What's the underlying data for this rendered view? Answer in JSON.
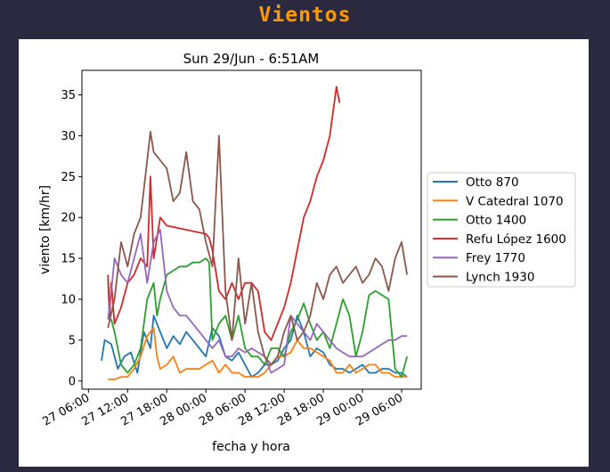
{
  "header": {
    "title": "Vientos"
  },
  "chart_data": {
    "type": "line",
    "title": "Sun 29/Jun - 6:51AM",
    "xlabel": "fecha y hora",
    "ylabel": "viento [km/hr]",
    "x_ticks": [
      "27 06:00",
      "27 12:00",
      "27 18:00",
      "28 00:00",
      "28 06:00",
      "28 12:00",
      "28 18:00",
      "29 00:00",
      "29 06:00"
    ],
    "y_ticks": [
      0,
      5,
      10,
      15,
      20,
      25,
      30,
      35
    ],
    "xlim": [
      "2025-06-27T05:00",
      "2025-06-29T09:00"
    ],
    "ylim": [
      -1,
      38
    ],
    "grid": false,
    "legend_position": "right",
    "series": [
      {
        "name": "Otto 870",
        "color": "#1f77b4",
        "points": [
          [
            "27T08:00",
            2.5
          ],
          [
            "27T08:30",
            5
          ],
          [
            "27T09:30",
            4.5
          ],
          [
            "27T10:30",
            1.5
          ],
          [
            "27T11:30",
            3
          ],
          [
            "27T12:30",
            3.5
          ],
          [
            "27T13:30",
            1
          ],
          [
            "27T14:30",
            6
          ],
          [
            "27T15:30",
            4
          ],
          [
            "27T16:00",
            8
          ],
          [
            "27T17:00",
            6
          ],
          [
            "27T18:00",
            4
          ],
          [
            "27T19:00",
            5.5
          ],
          [
            "27T20:00",
            4.5
          ],
          [
            "27T21:00",
            6
          ],
          [
            "27T22:00",
            5
          ],
          [
            "27T23:00",
            4
          ],
          [
            "28T00:00",
            3
          ],
          [
            "28T01:00",
            6.5
          ],
          [
            "28T02:00",
            5.5
          ],
          [
            "28T03:00",
            3
          ],
          [
            "28T04:00",
            2.5
          ],
          [
            "28T05:00",
            3.5
          ],
          [
            "28T06:00",
            2
          ],
          [
            "28T07:00",
            0.5
          ],
          [
            "28T08:00",
            1
          ],
          [
            "28T09:00",
            2
          ],
          [
            "28T10:00",
            2
          ],
          [
            "28T11:00",
            2.5
          ],
          [
            "28T12:00",
            4
          ],
          [
            "28T13:00",
            5
          ],
          [
            "28T14:00",
            8
          ],
          [
            "28T15:00",
            6
          ],
          [
            "28T16:00",
            3
          ],
          [
            "28T17:00",
            4
          ],
          [
            "28T18:00",
            3.5
          ],
          [
            "28T19:00",
            2
          ],
          [
            "28T20:00",
            1.5
          ],
          [
            "28T21:00",
            1.5
          ],
          [
            "28T22:00",
            1
          ],
          [
            "28T23:00",
            1.5
          ],
          [
            "29T00:00",
            2
          ],
          [
            "29T01:00",
            1
          ],
          [
            "29T02:00",
            1
          ],
          [
            "29T03:00",
            1.5
          ],
          [
            "29T04:00",
            1.5
          ],
          [
            "29T05:00",
            1
          ],
          [
            "29T06:00",
            1
          ],
          [
            "29T06:50",
            0.5
          ]
        ]
      },
      {
        "name": "V Catedral 1070",
        "color": "#ff7f0e",
        "points": [
          [
            "27T09:00",
            0.2
          ],
          [
            "27T10:00",
            0.2
          ],
          [
            "27T11:00",
            0.5
          ],
          [
            "27T12:00",
            0.5
          ],
          [
            "27T13:00",
            1.5
          ],
          [
            "27T14:00",
            3
          ],
          [
            "27T15:00",
            5.5
          ],
          [
            "27T16:00",
            6.5
          ],
          [
            "27T16:30",
            3
          ],
          [
            "27T17:00",
            1.5
          ],
          [
            "27T18:00",
            2
          ],
          [
            "27T19:00",
            3
          ],
          [
            "27T20:00",
            1
          ],
          [
            "27T21:00",
            1.5
          ],
          [
            "27T22:00",
            1.5
          ],
          [
            "27T23:00",
            1.5
          ],
          [
            "28T00:00",
            2
          ],
          [
            "28T01:00",
            2.5
          ],
          [
            "28T02:00",
            1
          ],
          [
            "28T03:00",
            2
          ],
          [
            "28T04:00",
            1
          ],
          [
            "28T05:00",
            1
          ],
          [
            "28T06:00",
            0.5
          ],
          [
            "28T07:00",
            0.5
          ],
          [
            "28T08:00",
            0.5
          ],
          [
            "28T09:00",
            1
          ],
          [
            "28T10:00",
            2
          ],
          [
            "28T11:00",
            3
          ],
          [
            "28T12:00",
            3
          ],
          [
            "28T13:00",
            3.5
          ],
          [
            "28T14:00",
            5
          ],
          [
            "28T15:00",
            4
          ],
          [
            "28T16:00",
            4
          ],
          [
            "28T17:00",
            3.5
          ],
          [
            "28T18:00",
            3
          ],
          [
            "28T19:00",
            2.5
          ],
          [
            "28T20:00",
            1
          ],
          [
            "28T21:00",
            1
          ],
          [
            "28T22:00",
            2
          ],
          [
            "28T23:00",
            1
          ],
          [
            "29T00:00",
            1.5
          ],
          [
            "29T01:00",
            2
          ],
          [
            "29T02:00",
            2
          ],
          [
            "29T03:00",
            1
          ],
          [
            "29T04:00",
            1
          ],
          [
            "29T05:00",
            0.5
          ],
          [
            "29T06:00",
            0.5
          ],
          [
            "29T06:50",
            0.5
          ]
        ]
      },
      {
        "name": "Otto 1400",
        "color": "#2ca02c",
        "points": [
          [
            "27T09:00",
            12.5
          ],
          [
            "27T09:15",
            7.5
          ],
          [
            "27T09:30",
            7.5
          ],
          [
            "27T10:00",
            6
          ],
          [
            "27T11:00",
            2
          ],
          [
            "27T12:00",
            1
          ],
          [
            "27T13:00",
            2
          ],
          [
            "27T14:00",
            4
          ],
          [
            "27T15:00",
            10
          ],
          [
            "27T16:00",
            12
          ],
          [
            "27T16:30",
            8
          ],
          [
            "27T17:00",
            10
          ],
          [
            "27T18:00",
            13
          ],
          [
            "27T19:00",
            13.5
          ],
          [
            "27T20:00",
            14
          ],
          [
            "27T21:00",
            14
          ],
          [
            "27T22:00",
            14.5
          ],
          [
            "27T23:00",
            14.5
          ],
          [
            "28T00:00",
            15
          ],
          [
            "28T00:30",
            14.5
          ],
          [
            "28T01:00",
            5
          ],
          [
            "28T02:00",
            7
          ],
          [
            "28T03:00",
            8
          ],
          [
            "28T04:00",
            5
          ],
          [
            "28T05:00",
            8
          ],
          [
            "28T06:00",
            4
          ],
          [
            "28T07:00",
            3
          ],
          [
            "28T08:00",
            3
          ],
          [
            "28T09:00",
            2
          ],
          [
            "28T10:00",
            4
          ],
          [
            "28T11:00",
            4
          ],
          [
            "28T12:00",
            3
          ],
          [
            "28T13:00",
            6
          ],
          [
            "28T14:00",
            7.5
          ],
          [
            "28T15:00",
            9.5
          ],
          [
            "28T16:00",
            7
          ],
          [
            "28T17:00",
            5
          ],
          [
            "28T18:00",
            6
          ],
          [
            "28T19:00",
            4
          ],
          [
            "28T20:00",
            7
          ],
          [
            "28T21:00",
            10
          ],
          [
            "28T22:00",
            8
          ],
          [
            "28T23:00",
            3
          ],
          [
            "29T00:00",
            6
          ],
          [
            "29T01:00",
            10.5
          ],
          [
            "29T02:00",
            11
          ],
          [
            "29T03:00",
            10.5
          ],
          [
            "29T04:00",
            10
          ],
          [
            "29T05:00",
            1.5
          ],
          [
            "29T06:00",
            0.5
          ],
          [
            "29T06:50",
            3
          ]
        ]
      },
      {
        "name": "Refu López 1600",
        "color": "#d62728",
        "points": [
          [
            "27T09:00",
            13
          ],
          [
            "27T09:15",
            8
          ],
          [
            "27T09:30",
            12
          ],
          [
            "27T10:00",
            7
          ],
          [
            "27T11:00",
            9
          ],
          [
            "27T12:00",
            12
          ],
          [
            "27T13:00",
            13
          ],
          [
            "27T14:00",
            15
          ],
          [
            "27T15:00",
            14
          ],
          [
            "27T15:30",
            25
          ],
          [
            "27T16:00",
            15
          ],
          [
            "27T17:00",
            20
          ],
          [
            "27T18:00",
            19
          ],
          [
            "28T00:00",
            18
          ],
          [
            "28T00:30",
            17.5
          ],
          [
            "28T01:00",
            16
          ],
          [
            "28T02:00",
            11
          ],
          [
            "28T03:00",
            10
          ],
          [
            "28T04:00",
            12
          ],
          [
            "28T05:00",
            10
          ],
          [
            "28T06:00",
            12
          ],
          [
            "28T07:00",
            12
          ],
          [
            "28T08:00",
            11
          ],
          [
            "28T09:00",
            6
          ],
          [
            "28T10:00",
            5
          ],
          [
            "28T11:00",
            7
          ],
          [
            "28T12:00",
            9
          ],
          [
            "28T13:00",
            12
          ],
          [
            "28T14:00",
            16
          ],
          [
            "28T15:00",
            20
          ],
          [
            "28T16:00",
            22
          ],
          [
            "28T17:00",
            25
          ],
          [
            "28T18:00",
            27
          ],
          [
            "28T19:00",
            30
          ],
          [
            "28T20:00",
            36
          ],
          [
            "28T20:30",
            34
          ]
        ]
      },
      {
        "name": "Frey 1770",
        "color": "#9467bd",
        "points": [
          [
            "27T09:00",
            7.5
          ],
          [
            "27T09:30",
            11
          ],
          [
            "27T10:00",
            15
          ],
          [
            "27T11:00",
            13
          ],
          [
            "27T12:00",
            12
          ],
          [
            "27T13:00",
            15
          ],
          [
            "27T14:00",
            18
          ],
          [
            "27T15:00",
            12
          ],
          [
            "27T16:00",
            17
          ],
          [
            "27T17:00",
            18.5
          ],
          [
            "27T18:00",
            11
          ],
          [
            "27T19:00",
            9
          ],
          [
            "27T20:00",
            8
          ],
          [
            "27T21:00",
            8
          ],
          [
            "27T22:00",
            7
          ],
          [
            "27T23:00",
            6
          ],
          [
            "28T00:00",
            5
          ],
          [
            "28T01:00",
            4
          ],
          [
            "28T02:00",
            5
          ],
          [
            "28T03:00",
            3
          ],
          [
            "28T04:00",
            3
          ],
          [
            "28T05:00",
            4
          ],
          [
            "28T06:00",
            3.5
          ],
          [
            "28T07:00",
            4
          ],
          [
            "28T08:00",
            3.5
          ],
          [
            "28T09:00",
            3
          ],
          [
            "28T10:00",
            1
          ],
          [
            "28T11:00",
            1.5
          ],
          [
            "28T12:00",
            2
          ],
          [
            "28T13:00",
            8
          ],
          [
            "28T14:00",
            7
          ],
          [
            "28T15:00",
            6
          ],
          [
            "28T16:00",
            5
          ],
          [
            "28T17:00",
            7
          ],
          [
            "28T18:00",
            6
          ],
          [
            "28T19:00",
            5
          ],
          [
            "28T20:00",
            4
          ],
          [
            "28T21:00",
            3.5
          ],
          [
            "28T22:00",
            3
          ],
          [
            "28T23:00",
            3
          ],
          [
            "29T00:00",
            3
          ],
          [
            "29T01:00",
            3.5
          ],
          [
            "29T02:00",
            4
          ],
          [
            "29T03:00",
            4.5
          ],
          [
            "29T04:00",
            5
          ],
          [
            "29T05:00",
            5
          ],
          [
            "29T06:00",
            5.5
          ],
          [
            "29T06:50",
            5.5
          ]
        ]
      },
      {
        "name": "Lynch 1930",
        "color": "#8c564b",
        "points": [
          [
            "27T09:00",
            6.5
          ],
          [
            "27T10:00",
            10
          ],
          [
            "27T11:00",
            17
          ],
          [
            "27T12:00",
            14
          ],
          [
            "27T13:00",
            18
          ],
          [
            "27T14:00",
            20
          ],
          [
            "27T15:00",
            27
          ],
          [
            "27T15:30",
            30.5
          ],
          [
            "27T16:00",
            28
          ],
          [
            "27T17:00",
            27
          ],
          [
            "27T18:00",
            26
          ],
          [
            "27T19:00",
            22
          ],
          [
            "27T20:00",
            23
          ],
          [
            "27T21:00",
            28
          ],
          [
            "27T22:00",
            22
          ],
          [
            "27T23:00",
            21
          ],
          [
            "28T00:00",
            17
          ],
          [
            "28T01:00",
            14
          ],
          [
            "28T02:00",
            30
          ],
          [
            "28T03:00",
            11
          ],
          [
            "28T04:00",
            5
          ],
          [
            "28T05:00",
            15
          ],
          [
            "28T06:00",
            7
          ],
          [
            "28T07:00",
            12
          ],
          [
            "28T08:00",
            6
          ],
          [
            "28T09:00",
            3
          ],
          [
            "28T10:00",
            2
          ],
          [
            "28T11:00",
            3
          ],
          [
            "28T12:00",
            6
          ],
          [
            "28T13:00",
            8
          ],
          [
            "28T14:00",
            5
          ],
          [
            "28T15:00",
            6
          ],
          [
            "28T16:00",
            8
          ],
          [
            "28T17:00",
            12
          ],
          [
            "28T18:00",
            10
          ],
          [
            "28T19:00",
            13
          ],
          [
            "28T20:00",
            14
          ],
          [
            "28T21:00",
            12
          ],
          [
            "28T22:00",
            13
          ],
          [
            "28T23:00",
            14
          ],
          [
            "29T00:00",
            12
          ],
          [
            "29T01:00",
            13
          ],
          [
            "29T02:00",
            15
          ],
          [
            "29T03:00",
            14
          ],
          [
            "29T04:00",
            11
          ],
          [
            "29T05:00",
            15
          ],
          [
            "29T06:00",
            17
          ],
          [
            "29T06:50",
            13
          ]
        ]
      }
    ]
  }
}
